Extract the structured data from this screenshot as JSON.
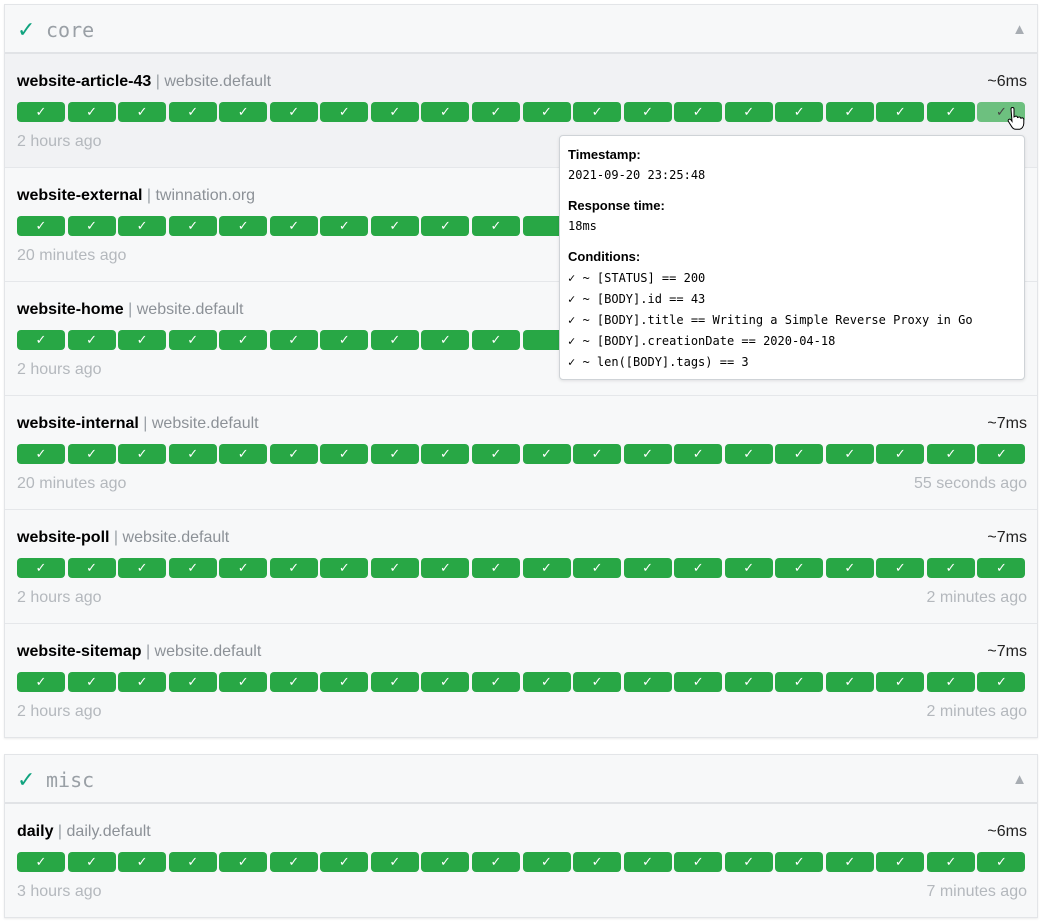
{
  "groups": [
    {
      "name": "core",
      "status_icon": "check-icon",
      "collapse_icon": "triangle-up-icon",
      "endpoints": [
        {
          "name": "website-article-43",
          "group": "website.default",
          "response": "~6ms",
          "oldest": "2 hours ago",
          "newest": "",
          "results": 20,
          "hovered_index": 19
        },
        {
          "name": "website-external",
          "group": "twinnation.org",
          "response": "",
          "oldest": "20 minutes ago",
          "newest": "",
          "results": 20
        },
        {
          "name": "website-home",
          "group": "website.default",
          "response": "",
          "oldest": "2 hours ago",
          "newest": "",
          "results": 20
        },
        {
          "name": "website-internal",
          "group": "website.default",
          "response": "~7ms",
          "oldest": "20 minutes ago",
          "newest": "55 seconds ago",
          "results": 20
        },
        {
          "name": "website-poll",
          "group": "website.default",
          "response": "~7ms",
          "oldest": "2 hours ago",
          "newest": "2 minutes ago",
          "results": 20
        },
        {
          "name": "website-sitemap",
          "group": "website.default",
          "response": "~7ms",
          "oldest": "2 hours ago",
          "newest": "2 minutes ago",
          "results": 20
        }
      ]
    },
    {
      "name": "misc",
      "status_icon": "check-icon",
      "collapse_icon": "triangle-up-icon",
      "endpoints": [
        {
          "name": "daily",
          "group": "daily.default",
          "response": "~6ms",
          "oldest": "3 hours ago",
          "newest": "7 minutes ago",
          "results": 20
        }
      ]
    }
  ],
  "bar_symbol": "✓",
  "separator": "|",
  "colors": {
    "success": "#28a745",
    "hover": "#6dc07f",
    "accent": "#10a37f"
  },
  "tooltip": {
    "timestamp_label": "Timestamp:",
    "timestamp": "2021-09-20 23:25:48",
    "response_label": "Response time:",
    "response": "18ms",
    "conditions_label": "Conditions:",
    "conditions": [
      "✓ ~ [STATUS] == 200",
      "✓ ~ [BODY].id == 43",
      "✓ ~ [BODY].title == Writing a Simple Reverse Proxy in Go",
      "✓ ~ [BODY].creationDate == 2020-04-18",
      "✓ ~ len([BODY].tags) == 3"
    ]
  }
}
